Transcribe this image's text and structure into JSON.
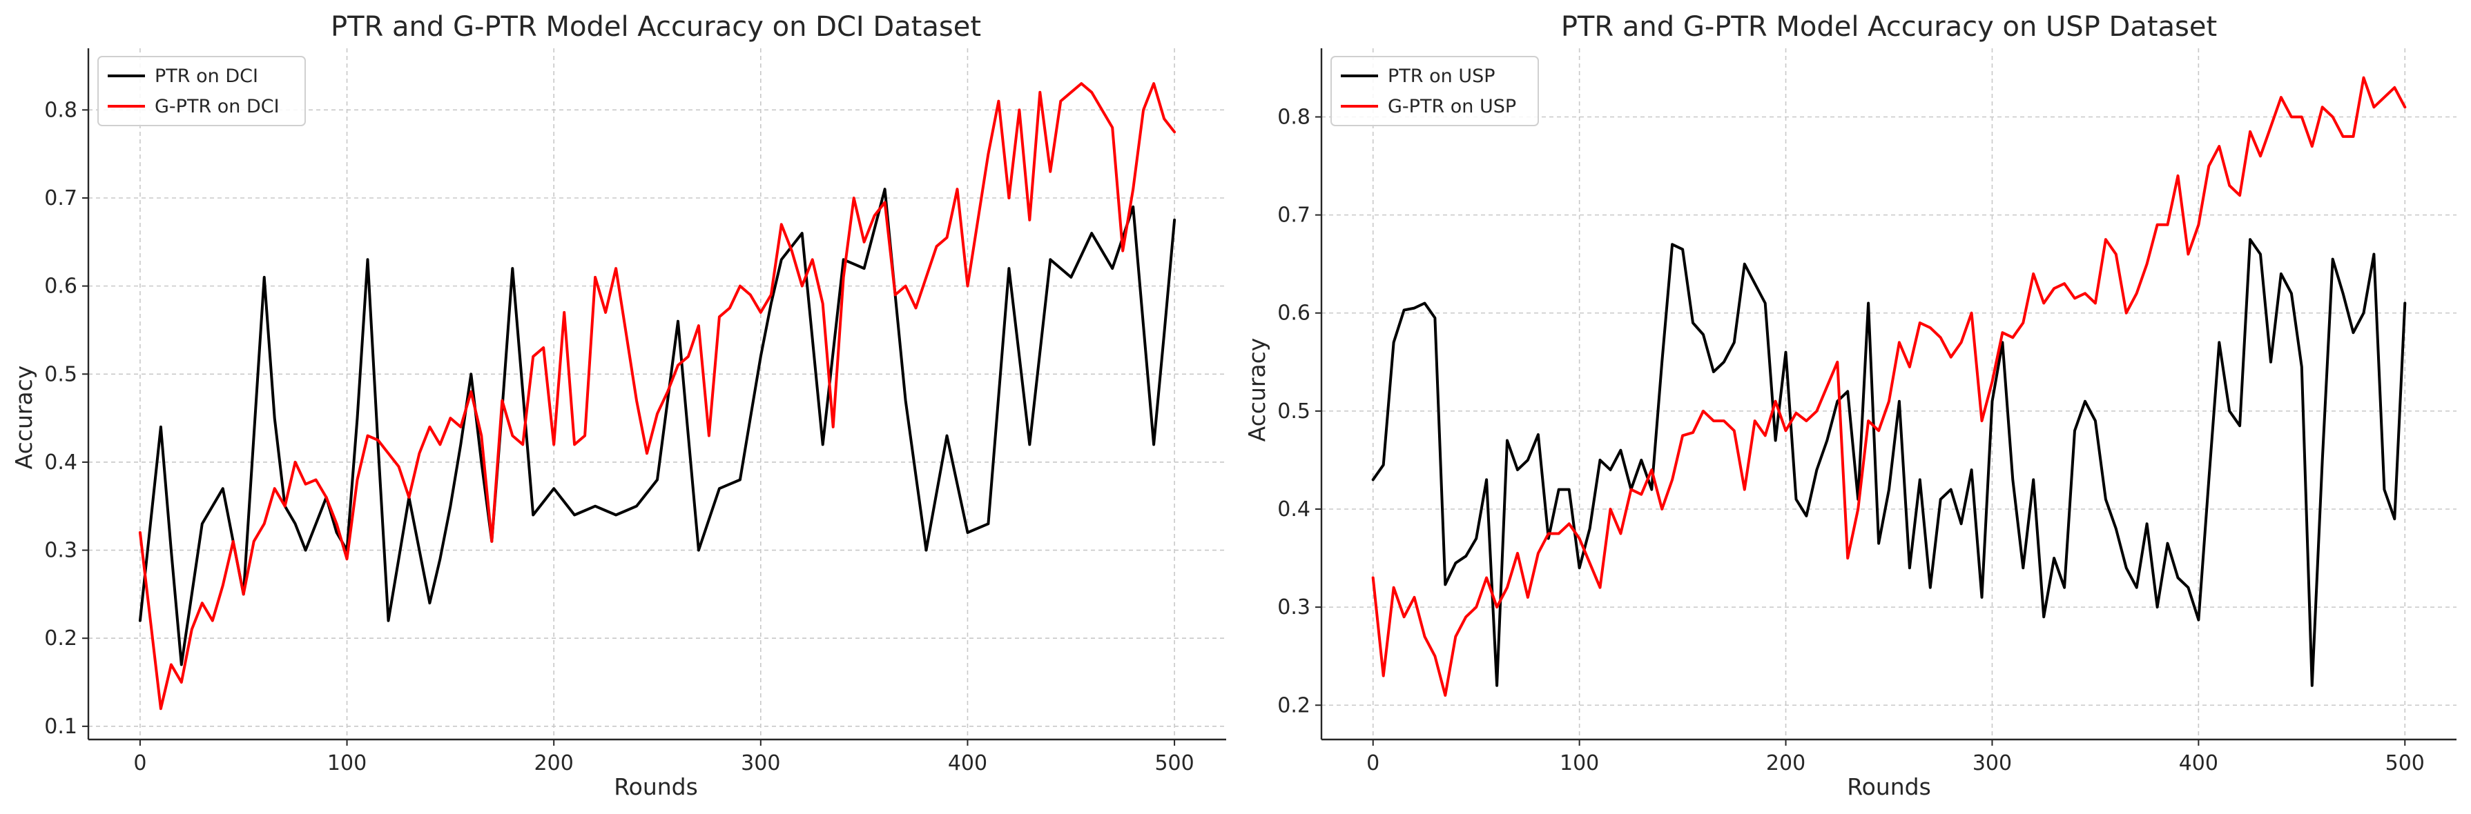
{
  "chart_data": [
    {
      "type": "line",
      "title": "PTR and G-PTR Model Accuracy on DCI Dataset",
      "xlabel": "Rounds",
      "ylabel": "Accuracy",
      "xlim": [
        -25,
        525
      ],
      "ylim": [
        0.085,
        0.87
      ],
      "xticks": [
        0,
        100,
        200,
        300,
        400,
        500
      ],
      "xtick_labels": [
        "0",
        "100",
        "200",
        "300",
        "400",
        "500"
      ],
      "yticks": [
        0.1,
        0.2,
        0.3,
        0.4,
        0.5,
        0.6,
        0.7,
        0.8
      ],
      "ytick_labels": [
        "0.1",
        "0.2",
        "0.3",
        "0.4",
        "0.5",
        "0.6",
        "0.7",
        "0.8"
      ],
      "grid": true,
      "legend_position": "top-left",
      "series": [
        {
          "name": "PTR on DCI",
          "color": "#000000",
          "x": [
            0,
            5,
            10,
            15,
            20,
            25,
            30,
            35,
            40,
            45,
            50,
            55,
            60,
            65,
            70,
            75,
            80,
            85,
            90,
            95,
            100,
            105,
            110,
            115,
            120,
            125,
            130,
            135,
            140,
            145,
            150,
            155,
            160,
            165,
            170,
            175,
            180,
            185,
            190,
            195,
            200,
            205,
            210,
            215,
            220,
            225,
            230,
            235,
            240,
            245,
            250,
            255,
            260,
            265,
            270,
            275,
            280,
            285,
            290,
            295,
            300,
            305,
            310,
            315,
            320,
            325,
            330,
            335,
            340,
            345,
            350,
            355,
            360,
            365,
            370,
            375,
            380,
            385,
            390,
            395,
            400,
            405,
            410,
            415,
            420,
            425,
            430,
            435,
            440,
            445,
            450,
            455,
            460,
            465,
            470,
            475,
            480,
            485,
            490,
            495,
            500
          ],
          "y": [
            0.22,
            0.33,
            0.44,
            0.3,
            0.17,
            0.25,
            0.33,
            0.35,
            0.37,
            0.31,
            0.25,
            0.43,
            0.61,
            0.45,
            0.35,
            0.33,
            0.3,
            0.33,
            0.36,
            0.32,
            0.3,
            0.45,
            0.63,
            0.42,
            0.22,
            0.29,
            0.36,
            0.3,
            0.24,
            0.29,
            0.35,
            0.42,
            0.5,
            0.4,
            0.31,
            0.46,
            0.62,
            0.48,
            0.34,
            0.355,
            0.37,
            0.355,
            0.34,
            0.345,
            0.35,
            0.345,
            0.34,
            0.345,
            0.35,
            0.365,
            0.38,
            0.47,
            0.56,
            0.43,
            0.3,
            0.335,
            0.37,
            0.375,
            0.38,
            0.45,
            0.52,
            0.58,
            0.63,
            0.645,
            0.66,
            0.54,
            0.42,
            0.525,
            0.63,
            0.625,
            0.62,
            0.665,
            0.71,
            0.59,
            0.47,
            0.385,
            0.3,
            0.365,
            0.43,
            0.375,
            0.32,
            0.325,
            0.33,
            0.475,
            0.62,
            0.52,
            0.42,
            0.525,
            0.63,
            0.62,
            0.61,
            0.635,
            0.66,
            0.64,
            0.62,
            0.655,
            0.69,
            0.555,
            0.42,
            0.545,
            0.675
          ]
        },
        {
          "name": "G-PTR on DCI",
          "color": "#ff0000",
          "x": [
            0,
            5,
            10,
            15,
            20,
            25,
            30,
            35,
            40,
            45,
            50,
            55,
            60,
            65,
            70,
            75,
            80,
            85,
            90,
            95,
            100,
            105,
            110,
            115,
            120,
            125,
            130,
            135,
            140,
            145,
            150,
            155,
            160,
            165,
            170,
            175,
            180,
            185,
            190,
            195,
            200,
            205,
            210,
            215,
            220,
            225,
            230,
            235,
            240,
            245,
            250,
            255,
            260,
            265,
            270,
            275,
            280,
            285,
            290,
            295,
            300,
            305,
            310,
            315,
            320,
            325,
            330,
            335,
            340,
            345,
            350,
            355,
            360,
            365,
            370,
            375,
            380,
            385,
            390,
            395,
            400,
            405,
            410,
            415,
            420,
            425,
            430,
            435,
            440,
            445,
            450,
            455,
            460,
            465,
            470,
            475,
            480,
            485,
            490,
            495,
            500
          ],
          "y": [
            0.32,
            0.22,
            0.12,
            0.17,
            0.15,
            0.21,
            0.24,
            0.22,
            0.26,
            0.31,
            0.25,
            0.31,
            0.33,
            0.37,
            0.35,
            0.4,
            0.375,
            0.38,
            0.36,
            0.33,
            0.29,
            0.38,
            0.43,
            0.425,
            0.41,
            0.395,
            0.36,
            0.41,
            0.44,
            0.42,
            0.45,
            0.44,
            0.48,
            0.43,
            0.31,
            0.47,
            0.43,
            0.42,
            0.52,
            0.53,
            0.42,
            0.57,
            0.42,
            0.43,
            0.61,
            0.57,
            0.62,
            0.545,
            0.47,
            0.41,
            0.455,
            0.48,
            0.51,
            0.52,
            0.555,
            0.43,
            0.565,
            0.575,
            0.6,
            0.59,
            0.57,
            0.59,
            0.67,
            0.64,
            0.6,
            0.63,
            0.58,
            0.44,
            0.61,
            0.7,
            0.65,
            0.68,
            0.695,
            0.59,
            0.6,
            0.575,
            0.61,
            0.645,
            0.655,
            0.71,
            0.6,
            0.675,
            0.75,
            0.81,
            0.7,
            0.8,
            0.675,
            0.82,
            0.73,
            0.81,
            0.82,
            0.83,
            0.82,
            0.8,
            0.78,
            0.64,
            0.71,
            0.8,
            0.83,
            0.79,
            0.775
          ]
        }
      ]
    },
    {
      "type": "line",
      "title": "PTR and G-PTR Model Accuracy on USP Dataset",
      "xlabel": "Rounds",
      "ylabel": "Accuracy",
      "xlim": [
        -25,
        525
      ],
      "ylim": [
        0.165,
        0.87
      ],
      "xticks": [
        0,
        100,
        200,
        300,
        400,
        500
      ],
      "xtick_labels": [
        "0",
        "100",
        "200",
        "300",
        "400",
        "500"
      ],
      "yticks": [
        0.2,
        0.3,
        0.4,
        0.5,
        0.6,
        0.7,
        0.8
      ],
      "ytick_labels": [
        "0.2",
        "0.3",
        "0.4",
        "0.5",
        "0.6",
        "0.7",
        "0.8"
      ],
      "grid": true,
      "legend_position": "top-left",
      "series": [
        {
          "name": "PTR on USP",
          "color": "#000000",
          "x": [
            0,
            5,
            10,
            15,
            20,
            25,
            30,
            35,
            40,
            45,
            50,
            55,
            60,
            65,
            70,
            75,
            80,
            85,
            90,
            95,
            100,
            105,
            110,
            115,
            120,
            125,
            130,
            135,
            140,
            145,
            150,
            155,
            160,
            165,
            170,
            175,
            180,
            185,
            190,
            195,
            200,
            205,
            210,
            215,
            220,
            225,
            230,
            235,
            240,
            245,
            250,
            255,
            260,
            265,
            270,
            275,
            280,
            285,
            290,
            295,
            300,
            305,
            310,
            315,
            320,
            325,
            330,
            335,
            340,
            345,
            350,
            355,
            360,
            365,
            370,
            375,
            380,
            385,
            390,
            395,
            400,
            405,
            410,
            415,
            420,
            425,
            430,
            435,
            440,
            445,
            450,
            455,
            460,
            465,
            470,
            475,
            480,
            485,
            490,
            495,
            500
          ],
          "y": [
            0.43,
            0.445,
            0.57,
            0.603,
            0.605,
            0.61,
            0.595,
            0.323,
            0.345,
            0.352,
            0.37,
            0.43,
            0.22,
            0.47,
            0.44,
            0.45,
            0.476,
            0.37,
            0.42,
            0.42,
            0.34,
            0.38,
            0.45,
            0.44,
            0.46,
            0.42,
            0.45,
            0.42,
            0.55,
            0.67,
            0.665,
            0.59,
            0.578,
            0.54,
            0.55,
            0.57,
            0.65,
            0.63,
            0.61,
            0.47,
            0.56,
            0.41,
            0.393,
            0.44,
            0.47,
            0.51,
            0.52,
            0.41,
            0.61,
            0.365,
            0.42,
            0.51,
            0.34,
            0.43,
            0.32,
            0.41,
            0.42,
            0.385,
            0.44,
            0.31,
            0.51,
            0.57,
            0.43,
            0.34,
            0.43,
            0.29,
            0.35,
            0.32,
            0.48,
            0.51,
            0.49,
            0.41,
            0.38,
            0.34,
            0.32,
            0.385,
            0.3,
            0.365,
            0.33,
            0.32,
            0.287,
            0.43,
            0.57,
            0.5,
            0.485,
            0.675,
            0.66,
            0.55,
            0.64,
            0.62,
            0.545,
            0.22,
            0.45,
            0.655,
            0.62,
            0.58,
            0.6,
            0.66,
            0.42,
            0.39,
            0.61
          ]
        },
        {
          "name": "G-PTR on USP",
          "color": "#ff0000",
          "x": [
            0,
            5,
            10,
            15,
            20,
            25,
            30,
            35,
            40,
            45,
            50,
            55,
            60,
            65,
            70,
            75,
            80,
            85,
            90,
            95,
            100,
            105,
            110,
            115,
            120,
            125,
            130,
            135,
            140,
            145,
            150,
            155,
            160,
            165,
            170,
            175,
            180,
            185,
            190,
            195,
            200,
            205,
            210,
            215,
            220,
            225,
            230,
            235,
            240,
            245,
            250,
            255,
            260,
            265,
            270,
            275,
            280,
            285,
            290,
            295,
            300,
            305,
            310,
            315,
            320,
            325,
            330,
            335,
            340,
            345,
            350,
            355,
            360,
            365,
            370,
            375,
            380,
            385,
            390,
            395,
            400,
            405,
            410,
            415,
            420,
            425,
            430,
            435,
            440,
            445,
            450,
            455,
            460,
            465,
            470,
            475,
            480,
            485,
            490,
            495,
            500
          ],
          "y": [
            0.33,
            0.23,
            0.32,
            0.29,
            0.31,
            0.27,
            0.25,
            0.21,
            0.27,
            0.29,
            0.3,
            0.33,
            0.3,
            0.32,
            0.355,
            0.31,
            0.355,
            0.375,
            0.375,
            0.385,
            0.37,
            0.345,
            0.32,
            0.4,
            0.375,
            0.42,
            0.415,
            0.44,
            0.4,
            0.43,
            0.475,
            0.478,
            0.5,
            0.49,
            0.49,
            0.48,
            0.42,
            0.49,
            0.475,
            0.51,
            0.48,
            0.498,
            0.49,
            0.5,
            0.525,
            0.55,
            0.35,
            0.4,
            0.49,
            0.48,
            0.51,
            0.57,
            0.545,
            0.59,
            0.585,
            0.575,
            0.555,
            0.57,
            0.6,
            0.49,
            0.53,
            0.58,
            0.575,
            0.59,
            0.64,
            0.61,
            0.625,
            0.63,
            0.615,
            0.62,
            0.61,
            0.675,
            0.66,
            0.6,
            0.62,
            0.65,
            0.69,
            0.69,
            0.74,
            0.66,
            0.69,
            0.75,
            0.77,
            0.73,
            0.72,
            0.785,
            0.76,
            0.79,
            0.82,
            0.8,
            0.8,
            0.77,
            0.81,
            0.8,
            0.78,
            0.78,
            0.84,
            0.81,
            0.82,
            0.83,
            0.81
          ]
        }
      ]
    }
  ]
}
